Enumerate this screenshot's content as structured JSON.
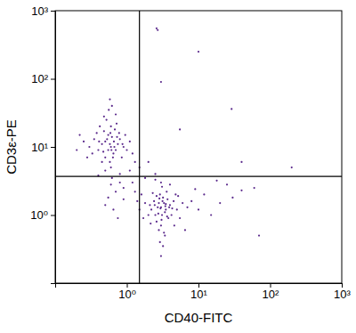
{
  "chart_data": {
    "type": "scatter",
    "x_label": "CD40-FITC",
    "y_label": "CD3ε-PE",
    "log": true,
    "grid": false,
    "marker": "dot",
    "color": "#5b2a8c",
    "xlim": [
      0.1,
      1000
    ],
    "ylim": [
      0.1,
      1000
    ],
    "xticks": [
      {
        "value": 1,
        "label": "10⁰"
      },
      {
        "value": 10,
        "label": "10¹"
      },
      {
        "value": 100,
        "label": "10²"
      },
      {
        "value": 1000,
        "label": "10³"
      }
    ],
    "yticks": [
      {
        "value": 1,
        "label": "10⁰"
      },
      {
        "value": 10,
        "label": "10¹"
      },
      {
        "value": 100,
        "label": "10²"
      },
      {
        "value": 1000,
        "label": "10³"
      }
    ],
    "quadrant_x": 1.5,
    "quadrant_y": 3.7,
    "x": [
      0.6,
      0.5,
      0.7,
      0.55,
      0.65,
      0.45,
      0.8,
      0.6,
      0.4,
      0.75,
      0.5,
      0.62,
      0.58,
      0.68,
      0.35,
      0.9,
      0.52,
      0.7,
      0.48,
      0.85,
      0.3,
      0.6,
      0.95,
      0.42,
      0.66,
      0.55,
      0.72,
      0.38,
      1.0,
      0.5,
      0.62,
      0.8,
      0.45,
      0.6,
      0.7,
      0.55,
      0.9,
      0.5,
      0.65,
      0.75,
      0.25,
      0.28,
      0.22,
      1.1,
      1.2,
      0.56,
      0.62,
      0.48,
      0.78,
      0.33,
      0.58,
      0.67,
      0.53,
      0.61,
      0.47,
      0.73,
      0.59,
      0.41,
      0.87,
      0.64,
      1.3,
      0.2,
      0.58,
      0.8,
      0.4,
      3,
      2.8,
      3.5,
      2.5,
      3.2,
      4,
      2.2,
      3.8,
      2.9,
      3.4,
      2.6,
      4.5,
      3.1,
      2.4,
      3.6,
      2.7,
      3.3,
      5,
      2.1,
      3.0,
      3.7,
      4.2,
      2.3,
      2.8,
      3.9,
      3.1,
      6,
      2.0,
      5.5,
      3.4,
      2.9,
      3.2,
      4.8,
      7,
      8,
      10,
      12,
      15,
      20,
      25,
      30,
      40,
      60,
      3,
      2.5,
      4,
      1.8,
      1.6,
      1.5,
      1.7,
      2.6,
      3.5,
      2.95,
      3.15,
      2.75,
      3.45,
      2.45,
      4.3,
      3.05,
      2.85,
      3.65,
      5.2,
      2.15,
      3.3,
      4.6,
      9,
      18,
      1.4,
      6.5,
      3.0,
      1.2,
      1.5,
      2,
      1.1,
      2.5,
      0.9,
      1.3,
      1.8,
      2.6,
      2.7,
      10,
      3,
      29,
      5.5,
      200,
      70,
      40
    ],
    "values": [
      10,
      12,
      9,
      15,
      8,
      11,
      13,
      20,
      9,
      11,
      7,
      14,
      6,
      18,
      13,
      10,
      25,
      30,
      17,
      7,
      10,
      5,
      15,
      20,
      12,
      9,
      22,
      16,
      9,
      4.5,
      3.5,
      4,
      6,
      2.8,
      2.2,
      1.8,
      2.5,
      1.4,
      1.2,
      0.9,
      12,
      7,
      15,
      12,
      8,
      35,
      40,
      28,
      16,
      8,
      11,
      10,
      13,
      9,
      8.5,
      14,
      16,
      12,
      11,
      7,
      6,
      9,
      50,
      3,
      3.8,
      1.3,
      1.5,
      1.2,
      1.0,
      1.8,
      1.4,
      1.2,
      0.9,
      2.0,
      1.1,
      0.8,
      1.6,
      1.0,
      1.6,
      2.2,
      1.3,
      1.5,
      1.2,
      1.4,
      0.7,
      1.7,
      1.0,
      2.1,
      0.6,
      1.3,
      2.6,
      1.5,
      1.0,
      0.9,
      0.5,
      0.4,
      0.35,
      2.0,
      1.3,
      1.6,
      1.2,
      2.0,
      1.0,
      1.5,
      2.8,
      1.8,
      2.3,
      2.5,
      3.0,
      3.3,
      2.8,
      1.5,
      2.0,
      1.2,
      0.9,
      1.9,
      1.45,
      1.25,
      1.6,
      1.05,
      1.35,
      1.4,
      1.25,
      0.85,
      1.75,
      0.95,
      1.9,
      0.75,
      0.55,
      0.7,
      2.4,
      3.2,
      1.6,
      0.6,
      0.25,
      3,
      5,
      6,
      4.5,
      4,
      1.7,
      2.2,
      3.5,
      550,
      520,
      250,
      90,
      36,
      18,
      5,
      0.5,
      6
    ]
  }
}
